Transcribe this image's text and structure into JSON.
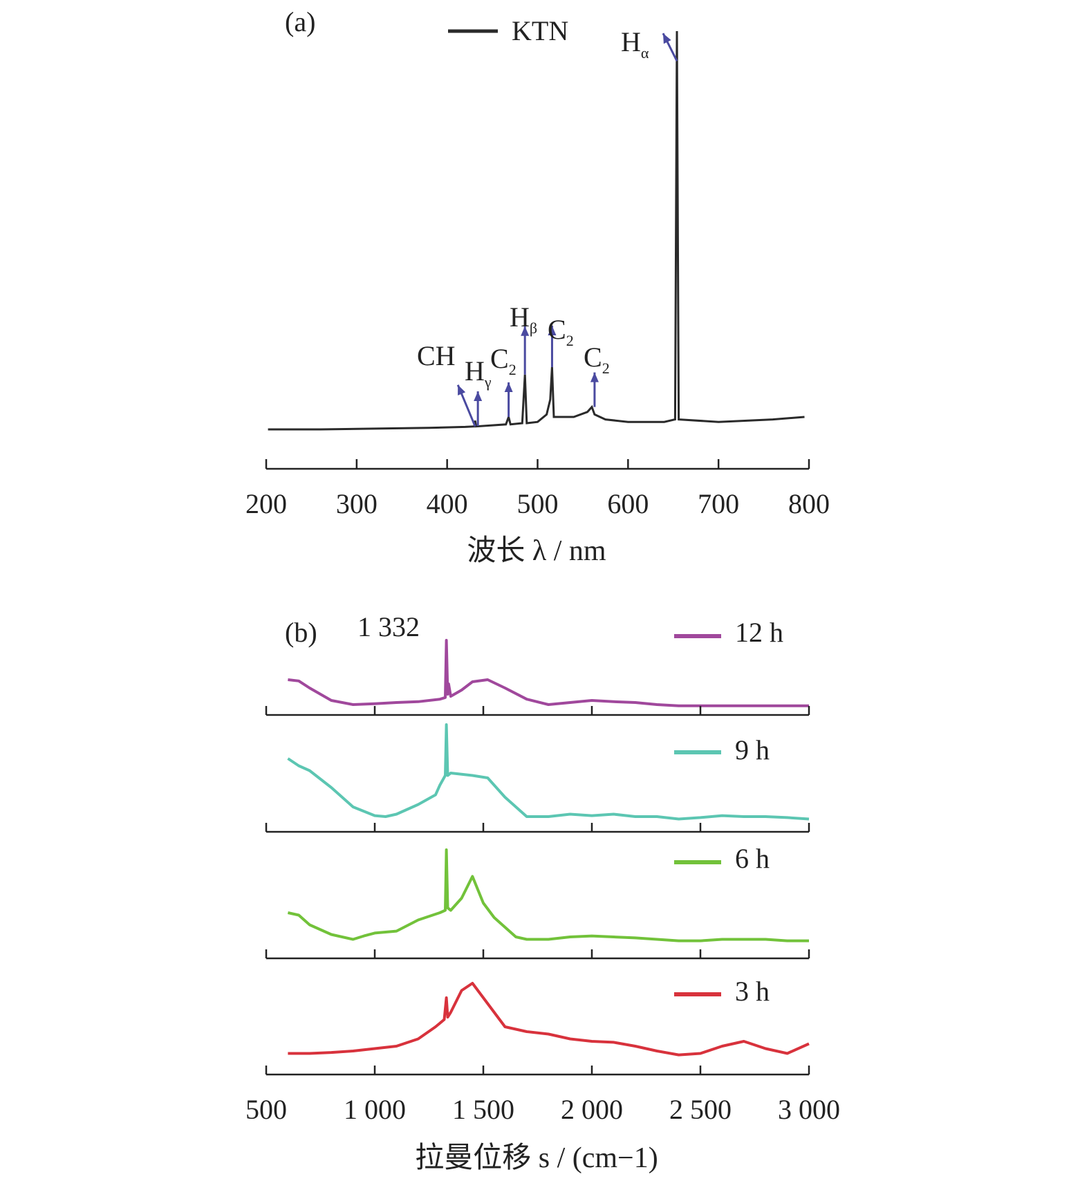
{
  "colors": {
    "axis": "#222222",
    "ktn": "#2a2a2a",
    "arrow": "#4a4aa0",
    "h12": "#a0489c",
    "h9": "#5cc6b2",
    "h6": "#72c23a",
    "h3": "#d8323c"
  },
  "chart_data": [
    {
      "panel_label": "(a)",
      "type": "line",
      "xlabel": "波长 λ / nm",
      "xlim": [
        200,
        800
      ],
      "xticks": [
        "200",
        "300",
        "400",
        "500",
        "600",
        "700",
        "800"
      ],
      "ylabel": "",
      "legend": {
        "position": "top-center",
        "entries": [
          "KTN"
        ]
      },
      "series": [
        {
          "name": "KTN",
          "color": "#2a2a2a",
          "points": [
            [
              202,
              0.0
            ],
            [
              260,
              0.0
            ],
            [
              320,
              0.003
            ],
            [
              380,
              0.006
            ],
            [
              420,
              0.01
            ],
            [
              430,
              0.012
            ],
            [
              431,
              0.035
            ],
            [
              432,
              0.012
            ],
            [
              465,
              0.02
            ],
            [
              468,
              0.05
            ],
            [
              470,
              0.02
            ],
            [
              483,
              0.025
            ],
            [
              486,
              0.22
            ],
            [
              488,
              0.025
            ],
            [
              500,
              0.03
            ],
            [
              510,
              0.06
            ],
            [
              514,
              0.12
            ],
            [
              516,
              0.25
            ],
            [
              518,
              0.05
            ],
            [
              540,
              0.05
            ],
            [
              555,
              0.07
            ],
            [
              560,
              0.09
            ],
            [
              563,
              0.06
            ],
            [
              575,
              0.04
            ],
            [
              600,
              0.03
            ],
            [
              640,
              0.03
            ],
            [
              652,
              0.04
            ],
            [
              654,
              1.6
            ],
            [
              656,
              0.04
            ],
            [
              700,
              0.03
            ],
            [
              760,
              0.04
            ],
            [
              795,
              0.05
            ]
          ]
        }
      ],
      "annotations": [
        {
          "text": "CH",
          "sub": "",
          "x": 431
        },
        {
          "text": "H",
          "sub": "γ",
          "x": 434
        },
        {
          "text": "C",
          "sub": "2",
          "x": 468
        },
        {
          "text": "H",
          "sub": "β",
          "x": 486
        },
        {
          "text": "C",
          "sub": "2",
          "x": 516
        },
        {
          "text": "C",
          "sub": "2",
          "x": 563
        },
        {
          "text": "H",
          "sub": "α",
          "x": 656
        }
      ]
    },
    {
      "panel_label": "(b)",
      "type": "line",
      "xlabel": "拉曼位移 s / (cm−1)",
      "xlim": [
        500,
        3000
      ],
      "xticks": [
        "500",
        "1 000",
        "1 500",
        "2 000",
        "2 500",
        "3 000"
      ],
      "ylabel": "",
      "peak_label": {
        "text": "1 332",
        "x": 1332
      },
      "legend": {
        "position": "right",
        "entries": [
          "12 h",
          "9 h",
          "6 h",
          "3 h"
        ]
      },
      "series": [
        {
          "name": "12 h",
          "color": "#a0489c",
          "points": [
            [
              600,
              0.65
            ],
            [
              650,
              0.62
            ],
            [
              700,
              0.45
            ],
            [
              800,
              0.15
            ],
            [
              900,
              0.05
            ],
            [
              1000,
              0.07
            ],
            [
              1100,
              0.1
            ],
            [
              1200,
              0.12
            ],
            [
              1300,
              0.18
            ],
            [
              1325,
              0.22
            ],
            [
              1330,
              1.6
            ],
            [
              1336,
              0.3
            ],
            [
              1340,
              0.55
            ],
            [
              1350,
              0.25
            ],
            [
              1400,
              0.4
            ],
            [
              1450,
              0.6
            ],
            [
              1520,
              0.65
            ],
            [
              1600,
              0.45
            ],
            [
              1700,
              0.18
            ],
            [
              1800,
              0.05
            ],
            [
              1900,
              0.1
            ],
            [
              2000,
              0.15
            ],
            [
              2100,
              0.12
            ],
            [
              2200,
              0.1
            ],
            [
              2300,
              0.05
            ],
            [
              2400,
              0.02
            ],
            [
              2500,
              0.02
            ],
            [
              2600,
              0.02
            ],
            [
              2700,
              0.02
            ],
            [
              2800,
              0.02
            ],
            [
              3000,
              0.02
            ]
          ]
        },
        {
          "name": "9 h",
          "color": "#5cc6b2",
          "points": [
            [
              600,
              1.3
            ],
            [
              650,
              1.15
            ],
            [
              700,
              1.05
            ],
            [
              800,
              0.7
            ],
            [
              900,
              0.3
            ],
            [
              1000,
              0.12
            ],
            [
              1050,
              0.1
            ],
            [
              1100,
              0.15
            ],
            [
              1200,
              0.35
            ],
            [
              1280,
              0.55
            ],
            [
              1300,
              0.75
            ],
            [
              1325,
              0.95
            ],
            [
              1330,
              2.0
            ],
            [
              1336,
              0.95
            ],
            [
              1350,
              1.0
            ],
            [
              1450,
              0.95
            ],
            [
              1520,
              0.9
            ],
            [
              1600,
              0.5
            ],
            [
              1700,
              0.1
            ],
            [
              1800,
              0.1
            ],
            [
              1900,
              0.15
            ],
            [
              2000,
              0.12
            ],
            [
              2100,
              0.15
            ],
            [
              2200,
              0.1
            ],
            [
              2300,
              0.1
            ],
            [
              2400,
              0.05
            ],
            [
              2500,
              0.08
            ],
            [
              2600,
              0.12
            ],
            [
              2700,
              0.1
            ],
            [
              2800,
              0.1
            ],
            [
              2900,
              0.08
            ],
            [
              3000,
              0.05
            ]
          ]
        },
        {
          "name": "6 h",
          "color": "#72c23a",
          "points": [
            [
              600,
              0.6
            ],
            [
              650,
              0.55
            ],
            [
              700,
              0.35
            ],
            [
              800,
              0.15
            ],
            [
              900,
              0.05
            ],
            [
              950,
              0.12
            ],
            [
              1000,
              0.18
            ],
            [
              1100,
              0.22
            ],
            [
              1200,
              0.45
            ],
            [
              1300,
              0.6
            ],
            [
              1325,
              0.65
            ],
            [
              1330,
              1.9
            ],
            [
              1336,
              0.7
            ],
            [
              1350,
              0.65
            ],
            [
              1400,
              0.9
            ],
            [
              1450,
              1.35
            ],
            [
              1500,
              0.8
            ],
            [
              1550,
              0.5
            ],
            [
              1600,
              0.3
            ],
            [
              1650,
              0.1
            ],
            [
              1700,
              0.05
            ],
            [
              1800,
              0.05
            ],
            [
              1900,
              0.1
            ],
            [
              2000,
              0.12
            ],
            [
              2100,
              0.1
            ],
            [
              2200,
              0.08
            ],
            [
              2300,
              0.05
            ],
            [
              2400,
              0.02
            ],
            [
              2500,
              0.02
            ],
            [
              2600,
              0.05
            ],
            [
              2700,
              0.05
            ],
            [
              2800,
              0.05
            ],
            [
              2900,
              0.02
            ],
            [
              3000,
              0.02
            ]
          ]
        },
        {
          "name": "3 h",
          "color": "#d8323c",
          "points": [
            [
              600,
              0.05
            ],
            [
              700,
              0.05
            ],
            [
              800,
              0.07
            ],
            [
              900,
              0.1
            ],
            [
              1000,
              0.15
            ],
            [
              1100,
              0.2
            ],
            [
              1200,
              0.35
            ],
            [
              1280,
              0.6
            ],
            [
              1320,
              0.75
            ],
            [
              1330,
              1.2
            ],
            [
              1336,
              0.8
            ],
            [
              1350,
              0.9
            ],
            [
              1400,
              1.35
            ],
            [
              1450,
              1.5
            ],
            [
              1500,
              1.2
            ],
            [
              1550,
              0.9
            ],
            [
              1600,
              0.6
            ],
            [
              1700,
              0.5
            ],
            [
              1800,
              0.45
            ],
            [
              1900,
              0.35
            ],
            [
              2000,
              0.3
            ],
            [
              2100,
              0.28
            ],
            [
              2200,
              0.2
            ],
            [
              2300,
              0.1
            ],
            [
              2400,
              0.02
            ],
            [
              2500,
              0.05
            ],
            [
              2600,
              0.2
            ],
            [
              2700,
              0.3
            ],
            [
              2800,
              0.15
            ],
            [
              2900,
              0.05
            ],
            [
              3000,
              0.25
            ]
          ]
        }
      ]
    }
  ]
}
